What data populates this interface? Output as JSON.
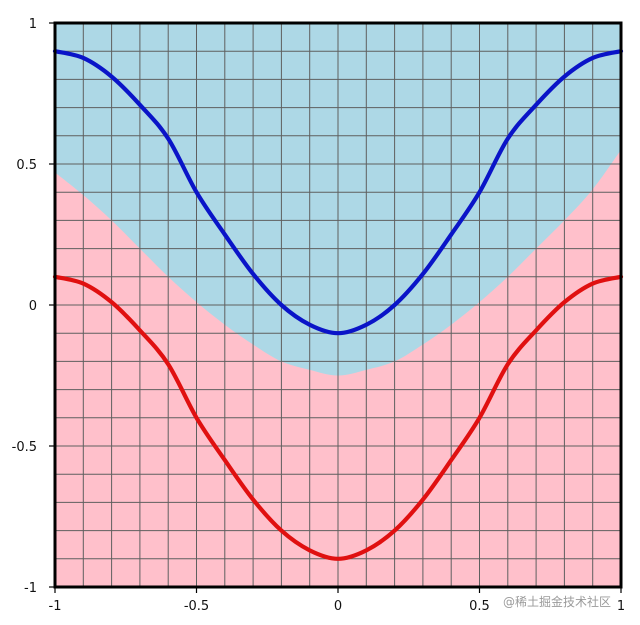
{
  "chart_data": {
    "type": "line",
    "xlim": [
      -1,
      1
    ],
    "ylim": [
      -1,
      1
    ],
    "grid": true,
    "grid_step": 0.1,
    "x_ticks": [
      {
        "value": -1,
        "label": "-1"
      },
      {
        "value": -0.5,
        "label": "-0.5"
      },
      {
        "value": 0,
        "label": "0"
      },
      {
        "value": 0.5,
        "label": "0.5"
      },
      {
        "value": 1,
        "label": "1"
      }
    ],
    "y_ticks": [
      {
        "value": 1,
        "label": "1"
      },
      {
        "value": 0.5,
        "label": "0.5"
      },
      {
        "value": 0,
        "label": "0"
      },
      {
        "value": -0.5,
        "label": "-0.5"
      },
      {
        "value": -1,
        "label": "-1"
      }
    ],
    "series": [
      {
        "color": "#0a14c8",
        "x": [
          -1,
          -0.9,
          -0.8,
          -0.7,
          -0.6,
          -0.5,
          -0.4,
          -0.3,
          -0.2,
          -0.1,
          0,
          0.1,
          0.2,
          0.3,
          0.4,
          0.5,
          0.6,
          0.7,
          0.8,
          0.9,
          1
        ],
        "y": [
          0.9,
          0.876,
          0.81,
          0.71,
          0.59,
          0.4,
          0.25,
          0.11,
          0.0,
          -0.07,
          -0.1,
          -0.07,
          0.0,
          0.11,
          0.25,
          0.4,
          0.59,
          0.71,
          0.81,
          0.876,
          0.9
        ]
      },
      {
        "color": "#e01010",
        "x": [
          -1,
          -0.9,
          -0.8,
          -0.7,
          -0.6,
          -0.5,
          -0.4,
          -0.3,
          -0.2,
          -0.1,
          0,
          0.1,
          0.2,
          0.3,
          0.4,
          0.5,
          0.6,
          0.7,
          0.8,
          0.9,
          1
        ],
        "y": [
          0.1,
          0.076,
          0.01,
          -0.09,
          -0.21,
          -0.4,
          -0.55,
          -0.69,
          -0.8,
          -0.87,
          -0.9,
          -0.87,
          -0.8,
          -0.69,
          -0.55,
          -0.4,
          -0.21,
          -0.09,
          0.01,
          0.076,
          0.1
        ]
      }
    ],
    "regions": [
      {
        "upper_color": "#add8e6",
        "lower_color": "#ffc0cb",
        "boundary_x": [
          -1,
          -0.9,
          -0.8,
          -0.7,
          -0.6,
          -0.5,
          -0.4,
          -0.3,
          -0.2,
          -0.1,
          0,
          0.1,
          0.2,
          0.3,
          0.4,
          0.5,
          0.6,
          0.7,
          0.8,
          0.9,
          1
        ],
        "boundary_y": [
          0.47,
          0.39,
          0.3,
          0.2,
          0.1,
          0.01,
          -0.07,
          -0.14,
          -0.2,
          -0.23,
          -0.25,
          -0.23,
          -0.2,
          -0.14,
          -0.07,
          0.01,
          0.1,
          0.2,
          0.3,
          0.41,
          0.55
        ]
      }
    ]
  },
  "watermark": "@稀土掘金技术社区"
}
